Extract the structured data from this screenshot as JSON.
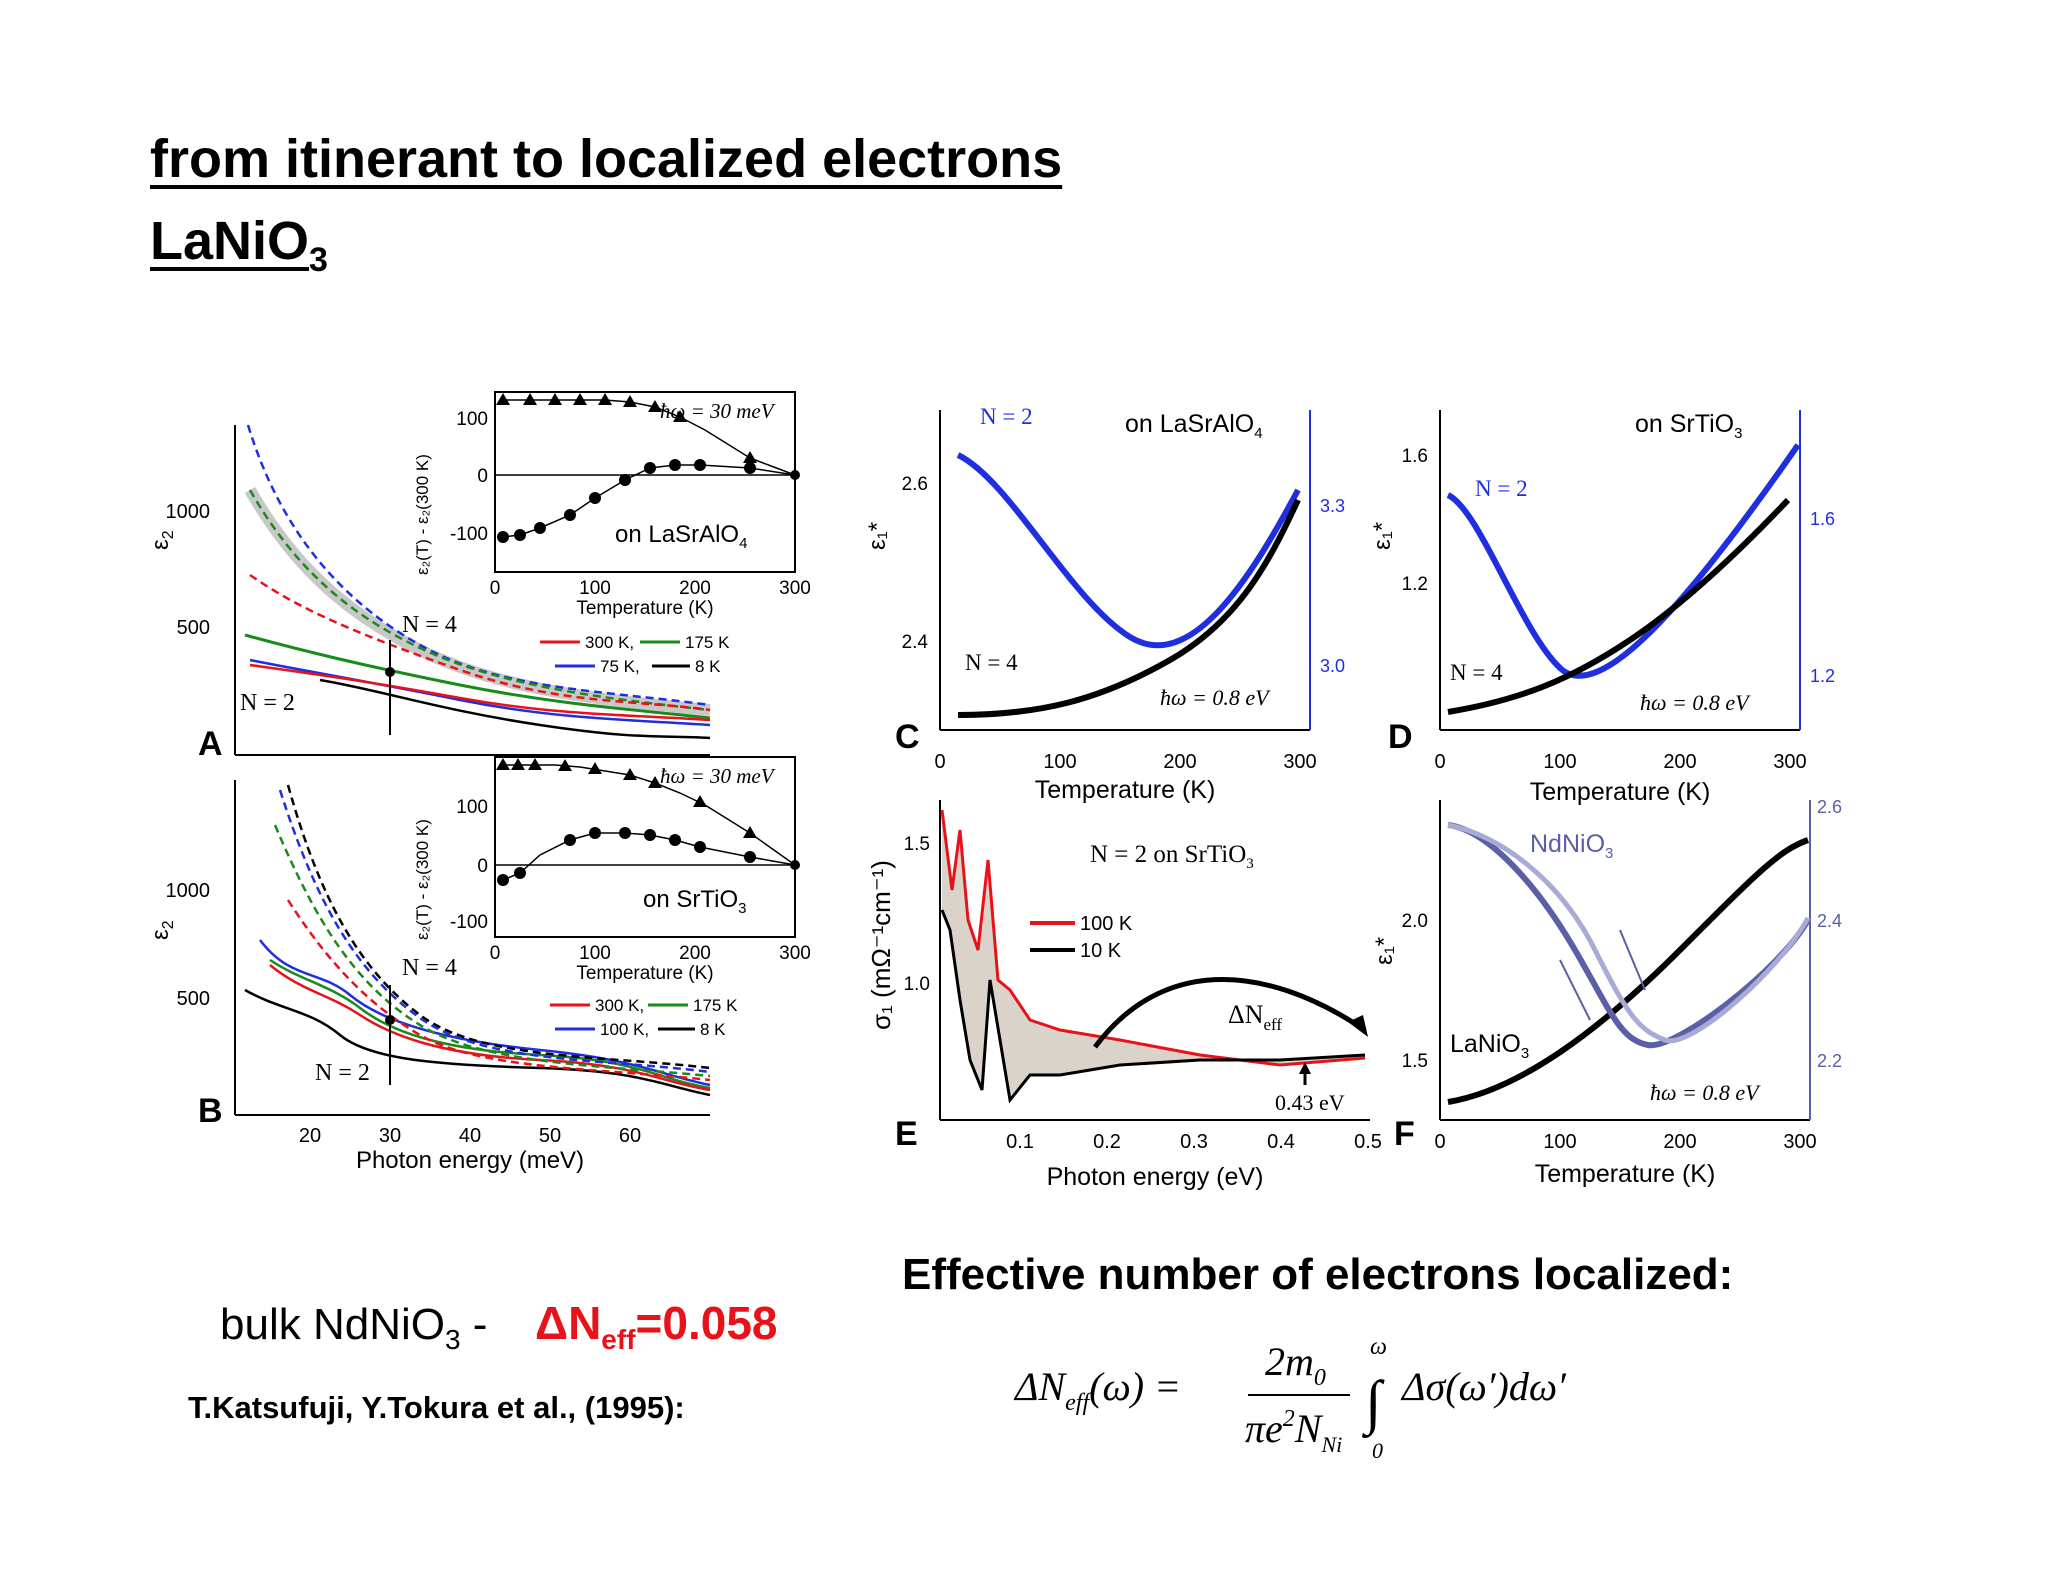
{
  "slide": {
    "title": "from itinerant to localized electrons",
    "subtitle_main": "LaNiO",
    "subtitle_sub": "3"
  },
  "panels": {
    "A": {
      "letter": "A",
      "ylabel": "ε",
      "ylabel_sub": "2",
      "y_ticks": [
        "500",
        "1000"
      ],
      "n4": "N = 4",
      "n2": "N = 2",
      "legend": [
        "300 K,",
        "175 K",
        "75 K,",
        "8 K"
      ]
    },
    "A_inset": {
      "ylabel": "ε₂(T) - ε₂(300 K)",
      "xlabel": "Temperature (K)",
      "x_ticks": [
        "0",
        "100",
        "200",
        "300"
      ],
      "y_ticks": [
        "100",
        "0",
        "-100"
      ],
      "energy": "ħω = 30 meV",
      "substrate": "on LaSrAlO",
      "substrate_sub": "4"
    },
    "B": {
      "letter": "B",
      "ylabel": "ε",
      "ylabel_sub": "2",
      "y_ticks": [
        "500",
        "1000"
      ],
      "n4": "N = 4",
      "n2": "N = 2",
      "xlabel": "Photon energy (meV)",
      "x_ticks": [
        "20",
        "30",
        "40",
        "50",
        "60"
      ],
      "legend": [
        "300 K,",
        "175 K",
        "100 K,",
        "8 K"
      ]
    },
    "B_inset": {
      "ylabel": "ε₂(T) - ε₂(300 K)",
      "xlabel": "Temperature (K)",
      "x_ticks": [
        "0",
        "100",
        "200",
        "300"
      ],
      "y_ticks": [
        "100",
        "0",
        "-100"
      ],
      "energy": "ħω = 30 meV",
      "substrate": "on SrTiO",
      "substrate_sub": "3"
    },
    "C": {
      "letter": "C",
      "ylabel": "ε₁*",
      "n2": "N = 2",
      "n4": "N = 4",
      "substrate": "on LaSrAlO",
      "substrate_sub": "4",
      "energy": "ħω = 0.8 eV",
      "xlabel": "Temperature (K)",
      "x_ticks": [
        "0",
        "100",
        "200",
        "300"
      ],
      "y_ticks": [
        "2.4",
        "2.6"
      ],
      "y2_ticks": [
        "3.0",
        "3.3"
      ]
    },
    "D": {
      "letter": "D",
      "ylabel": "ε₁*",
      "n2": "N = 2",
      "n4": "N = 4",
      "substrate": "on SrTiO",
      "substrate_sub": "3",
      "energy": "ħω = 0.8 eV",
      "xlabel": "Temperature (K)",
      "x_ticks": [
        "0",
        "100",
        "200",
        "300"
      ],
      "y_ticks": [
        "1.2",
        "1.6"
      ],
      "y2_ticks": [
        "1.2",
        "1.6"
      ]
    },
    "E": {
      "letter": "E",
      "ylabel": "σ₁ (mΩ⁻¹cm⁻¹)",
      "xlabel": "Photon energy (eV)",
      "x_ticks": [
        "0.1",
        "0.2",
        "0.3",
        "0.4",
        "0.5"
      ],
      "y_ticks": [
        "1.0",
        "1.5"
      ],
      "title": "N = 2  on SrTiO",
      "title_sub": "3",
      "legend": [
        "100 K",
        "10 K"
      ],
      "delta_label": "ΔN",
      "delta_sub": "eff",
      "marker": "0.43 eV"
    },
    "F": {
      "letter": "F",
      "ylabel": "ε₁*",
      "xlabel": "Temperature (K)",
      "x_ticks": [
        "0",
        "100",
        "200",
        "300"
      ],
      "y_ticks": [
        "1.5",
        "2.0"
      ],
      "y2_ticks": [
        "2.2",
        "2.4",
        "2.6"
      ],
      "label_nd": "NdNiO",
      "label_nd_sub": "3",
      "label_la": "LaNiO",
      "label_la_sub": "3",
      "energy": "ħω = 0.8 eV"
    }
  },
  "bottom": {
    "bulk_text": "bulk NdNiO",
    "bulk_sub": "3",
    "bulk_dash": " -",
    "neff_label": "ΔN",
    "neff_sub": "eff",
    "neff_value": "=0.058",
    "reference": "T.Katsufuji, Y.Tokura et al., (1995):",
    "effective_heading": "Effective number of electrons localized:",
    "formula": {
      "lhs": "ΔN",
      "lhs_sub": "eff",
      "lhs_arg": "(ω) =",
      "numerator": "2m",
      "numerator_sub": "0",
      "denominator": "πe",
      "denominator_sup": "2",
      "denominator_n": "N",
      "denominator_sub": "Ni",
      "int_upper": "ω",
      "int_lower": "0",
      "integrand": "Δσ(ω′)dω′"
    }
  },
  "colors": {
    "red": "#e8121b",
    "green": "#1a8a1a",
    "blue": "#1f2fe0",
    "black": "#000000",
    "navy": "#5a5fa6",
    "grey": "#c8c8c8"
  }
}
